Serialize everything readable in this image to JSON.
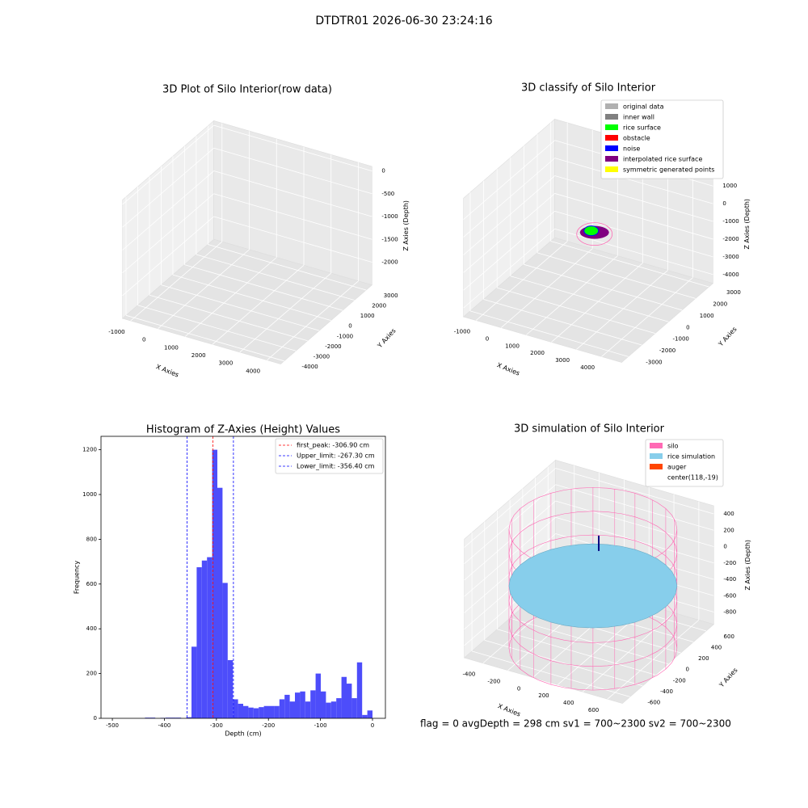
{
  "suptitle": "DTDTR01 2026-06-30 23:24:16",
  "footer": "flag = 0     avgDepth = 298 cm  sv1 = 700~2300  sv2 = 700~2300",
  "chart_data": [
    {
      "type": "scatter3d",
      "title": "3D Plot of Silo Interior(row data)",
      "xlabel": "X Axies",
      "ylabel": "Y Axies",
      "zlabel": "Z Axies (Depth)",
      "xlim": [
        -1300,
        4500
      ],
      "ylim": [
        -4300,
        3500
      ],
      "zlim": [
        -2500,
        100
      ],
      "xticks": [
        -1000,
        0,
        1000,
        2000,
        3000,
        4000
      ],
      "yticks": [
        -4000,
        -3000,
        -2000,
        -1000,
        0,
        1000,
        2000,
        3000
      ],
      "zticks": [
        -2000,
        -1500,
        -1000,
        -500,
        0
      ]
    },
    {
      "type": "scatter3d",
      "title": "3D classify of Silo Interior",
      "xlabel": "X Axies",
      "ylabel": "Y Axies",
      "zlabel": "Z Axies (Depth)",
      "xlim": [
        -1500,
        4800
      ],
      "ylim": [
        -3500,
        3300
      ],
      "zlim": [
        -4500,
        2200
      ],
      "xticks": [
        -1000,
        0,
        1000,
        2000,
        3000,
        4000
      ],
      "yticks": [
        -3000,
        -2000,
        -1000,
        0,
        1000,
        2000,
        3000
      ],
      "zticks": [
        -4000,
        -3000,
        -2000,
        -1000,
        0,
        1000
      ],
      "legend": [
        {
          "name": "original data",
          "color": "#b0b0b0"
        },
        {
          "name": "inner wall",
          "color": "#808080"
        },
        {
          "name": "rice surface",
          "color": "#00ff00"
        },
        {
          "name": "obstacle",
          "color": "#ff0000"
        },
        {
          "name": "noise",
          "color": "#0000ff"
        },
        {
          "name": "interpolated rice surface",
          "color": "#800080"
        },
        {
          "name": "symmetric generated points",
          "color": "#ffff00"
        }
      ]
    },
    {
      "type": "histogram",
      "title": "Histogram of Z-Axies (Height) Values",
      "xlabel": "Depth (cm)",
      "ylabel": "Frequency",
      "color": "#4d4dfa",
      "xlim": [
        -521.85,
        24.85
      ],
      "ylim": [
        0,
        1260
      ],
      "xticks": [
        -500,
        -400,
        -300,
        -200,
        -100,
        0
      ],
      "yticks": [
        0,
        200,
        400,
        600,
        800,
        1000,
        1200
      ],
      "bins": [
        -497,
        -487.06,
        -477.12,
        -467.18,
        -457.24,
        -447.3,
        -437.36,
        -427.42,
        -417.48,
        -407.54,
        -397.6,
        -387.66,
        -377.72,
        -367.78,
        -357.84,
        -347.9,
        -337.96,
        -328.02,
        -318.08,
        -308.14,
        -298.2,
        -288.26,
        -278.32,
        -268.38,
        -258.44,
        -248.5,
        -238.56,
        -228.62,
        -218.68,
        -208.74,
        -198.8,
        -188.86,
        -178.92,
        -168.98,
        -159.04,
        -149.1,
        -139.16,
        -129.22,
        -119.28,
        -109.34,
        -99.4,
        -89.46,
        -79.52,
        -69.58,
        -59.64,
        -49.7,
        -39.76,
        -29.82,
        -19.88,
        -9.94,
        0
      ],
      "counts": [
        0,
        0,
        0,
        0,
        0,
        0,
        3,
        3,
        0,
        2,
        3,
        3,
        3,
        0,
        5,
        320,
        675,
        705,
        720,
        1200,
        1030,
        605,
        260,
        85,
        65,
        55,
        48,
        45,
        50,
        55,
        55,
        55,
        85,
        105,
        75,
        115,
        120,
        75,
        125,
        200,
        120,
        70,
        75,
        90,
        185,
        155,
        90,
        250,
        15,
        35
      ],
      "vlines": [
        {
          "label": "first_peak: -306.90 cm",
          "value": -306.9,
          "color": "#ff0000"
        },
        {
          "label": "Upper_limit: -267.30 cm",
          "value": -267.3,
          "color": "#0000ff"
        },
        {
          "label": "Lower_limit: -356.40 cm",
          "value": -356.4,
          "color": "#0000ff"
        }
      ]
    },
    {
      "type": "scatter3d",
      "title": "3D simulation of Silo Interior",
      "xlabel": "X Axies",
      "ylabel": "Y Axies",
      "zlabel": "Z Axies (Depth)",
      "xlim": [
        -550,
        720
      ],
      "ylim": [
        -720,
        720
      ],
      "zlim": [
        -950,
        500
      ],
      "xticks": [
        -400,
        -200,
        0,
        200,
        400,
        600
      ],
      "yticks": [
        -600,
        -400,
        -200,
        0,
        200,
        400,
        600
      ],
      "zticks": [
        -800,
        -600,
        -400,
        -200,
        0,
        200,
        400
      ],
      "legend": [
        {
          "name": "silo",
          "color": "#ff69b4"
        },
        {
          "name": "rice simulation",
          "color": "#87ceeb"
        },
        {
          "name": "auger",
          "color": "#ff4500"
        },
        {
          "name": "center(118,-19)",
          "color": null
        }
      ]
    }
  ]
}
